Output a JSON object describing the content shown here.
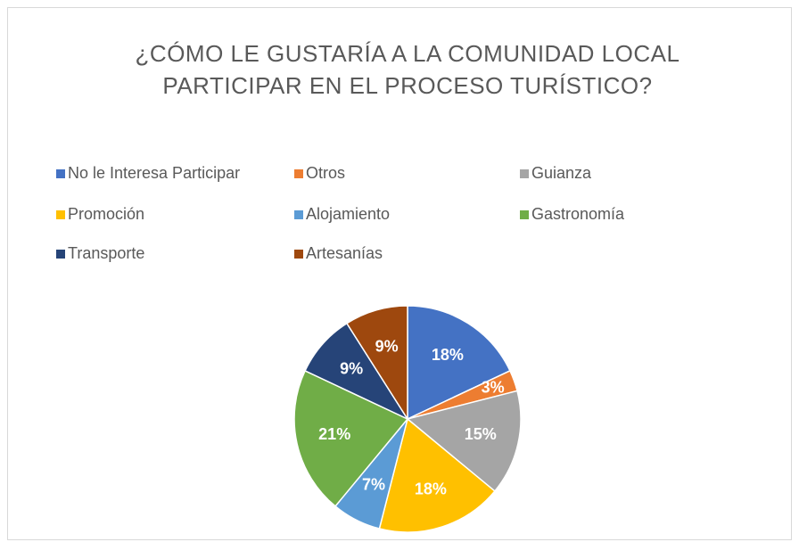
{
  "chart_data": {
    "type": "pie",
    "title": [
      "¿CÓMO LE GUSTARÍA A LA COMUNIDAD LOCAL",
      "PARTICIPAR EN EL PROCESO TURÍSTICO?"
    ],
    "categories": [
      "No le Interesa Participar",
      "Otros",
      "Guianza",
      "Promoción",
      "Alojamiento",
      "Gastronomía",
      "Transporte",
      "Artesanías"
    ],
    "values": [
      18,
      3,
      15,
      18,
      7,
      21,
      9,
      9
    ],
    "value_labels": [
      "18%",
      "3%",
      "15%",
      "18%",
      "7%",
      "21%",
      "9%",
      "9%"
    ],
    "colors": [
      "#4472c4",
      "#ed7d31",
      "#a5a5a5",
      "#ffc000",
      "#5b9bd5",
      "#70ad47",
      "#264478",
      "#9e480e"
    ],
    "legend": "top"
  }
}
